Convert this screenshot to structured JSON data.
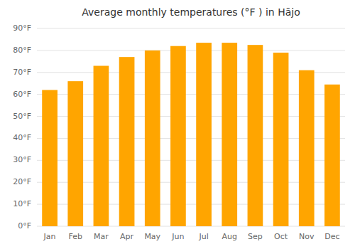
{
  "chart_data": {
    "type": "bar",
    "title": "Average monthly temperatures (°F ) in Hājo",
    "categories": [
      "Jan",
      "Feb",
      "Mar",
      "Apr",
      "May",
      "Jun",
      "Jul",
      "Aug",
      "Sep",
      "Oct",
      "Nov",
      "Dec"
    ],
    "values": [
      62,
      66,
      73,
      77,
      80,
      82,
      83.5,
      83.5,
      82.5,
      79,
      71,
      64.5
    ],
    "color": "#FFA500",
    "ylim": [
      0,
      90
    ],
    "yticks": [
      {
        "value": 0,
        "label": "0°F"
      },
      {
        "value": 10,
        "label": "10°F"
      },
      {
        "value": 20,
        "label": "20°F"
      },
      {
        "value": 30,
        "label": "30°F"
      },
      {
        "value": 40,
        "label": "40°F"
      },
      {
        "value": 50,
        "label": "50°F"
      },
      {
        "value": 60,
        "label": "60°F"
      },
      {
        "value": 70,
        "label": "70°F"
      },
      {
        "value": 80,
        "label": "80°F"
      },
      {
        "value": 90,
        "label": "90°F"
      }
    ],
    "grid": true
  }
}
